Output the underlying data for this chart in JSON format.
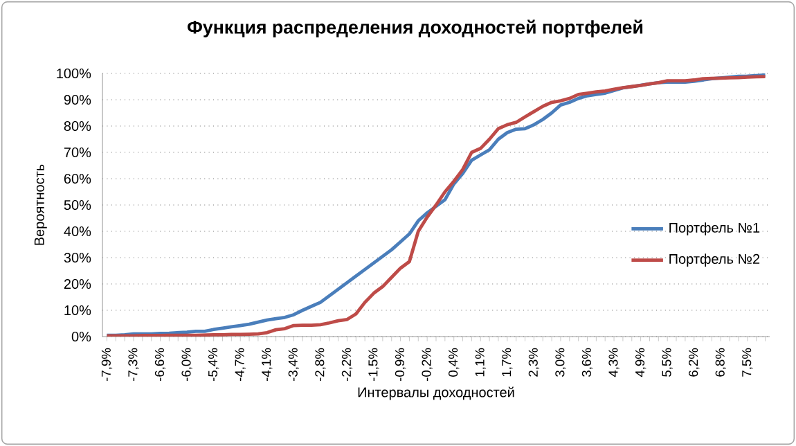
{
  "chart_data": {
    "type": "line",
    "title": "Функция распределения доходностей портфелей",
    "xlabel": "Интервалы доходностей",
    "ylabel": "Вероятность",
    "categories": [
      "-7,9%",
      null,
      null,
      "-7,3%",
      null,
      null,
      "-6,6%",
      null,
      null,
      "-6,0%",
      null,
      null,
      "-5,4%",
      null,
      null,
      "-4,7%",
      null,
      null,
      "-4,1%",
      null,
      null,
      "-3,4%",
      null,
      null,
      "-2,8%",
      null,
      null,
      "-2,2%",
      null,
      null,
      "-1,5%",
      null,
      null,
      "-0,9%",
      null,
      null,
      "-0,2%",
      null,
      null,
      "0,4%",
      null,
      null,
      "1,1%",
      null,
      null,
      "1,7%",
      null,
      null,
      "2,3%",
      null,
      null,
      "3,0%",
      null,
      null,
      "3,6%",
      null,
      null,
      "4,3%",
      null,
      null,
      "4,9%",
      null,
      null,
      "5,5%",
      null,
      null,
      "6,2%",
      null,
      null,
      "6,8%",
      null,
      null,
      "7,5%",
      null,
      null
    ],
    "series": [
      {
        "name": "Портфель №1",
        "color": "#4a7ebb",
        "values": [
          0.5,
          0.5,
          0.7,
          1,
          1,
          1,
          1.2,
          1.3,
          1.5,
          1.7,
          2,
          2,
          2.7,
          3.2,
          3.7,
          4.2,
          4.7,
          5.5,
          6.3,
          6.8,
          7.3,
          8.3,
          10,
          11.5,
          13,
          15.5,
          18,
          20.5,
          23,
          25.5,
          28,
          30.5,
          33,
          36,
          39,
          44,
          47,
          49.5,
          52,
          58,
          62,
          67,
          69,
          71,
          75,
          77.5,
          78.8,
          79,
          80.5,
          82.5,
          85,
          88,
          89,
          90.5,
          91.5,
          92,
          92.5,
          93.5,
          94.5,
          95,
          95.5,
          96,
          96.5,
          96.7,
          96.7,
          96.7,
          97,
          97.5,
          98,
          98.3,
          98.6,
          98.9,
          99,
          99.2,
          99.4
        ]
      },
      {
        "name": "Портфель №2",
        "color": "#be4b48",
        "values": [
          0.3,
          0.3,
          0.3,
          0.3,
          0.4,
          0.4,
          0.4,
          0.5,
          0.5,
          0.5,
          0.5,
          0.6,
          0.7,
          0.7,
          0.8,
          0.8,
          0.9,
          1,
          1.5,
          2.6,
          3,
          4.2,
          4.3,
          4.3,
          4.5,
          5.2,
          6,
          6.5,
          8.6,
          13,
          16.5,
          19,
          22.5,
          26,
          28.5,
          40,
          45.4,
          50,
          55,
          59,
          63.5,
          70,
          71.5,
          75,
          79,
          80.5,
          81.4,
          83.5,
          85.5,
          87.5,
          89,
          89.6,
          90.5,
          92,
          92.5,
          93,
          93.3,
          94,
          94.6,
          95,
          95.4,
          96,
          96.5,
          97.2,
          97.2,
          97.2,
          97.5,
          98,
          98.1,
          98.2,
          98.3,
          98.4,
          98.6,
          98.7,
          98.8
        ]
      }
    ],
    "ylim": [
      0,
      100
    ],
    "yticks": [
      {
        "value": 0,
        "label": "0%"
      },
      {
        "value": 10,
        "label": "10%"
      },
      {
        "value": 20,
        "label": "20%"
      },
      {
        "value": 30,
        "label": "30%"
      },
      {
        "value": 40,
        "label": "40%"
      },
      {
        "value": 50,
        "label": "50%"
      },
      {
        "value": 60,
        "label": "60%"
      },
      {
        "value": 70,
        "label": "70%"
      },
      {
        "value": 80,
        "label": "80%"
      },
      {
        "value": 90,
        "label": "90%"
      },
      {
        "value": 100,
        "label": "100%"
      }
    ],
    "grid": "y",
    "legend": "right",
    "marker": "none",
    "line_style": "solid"
  }
}
